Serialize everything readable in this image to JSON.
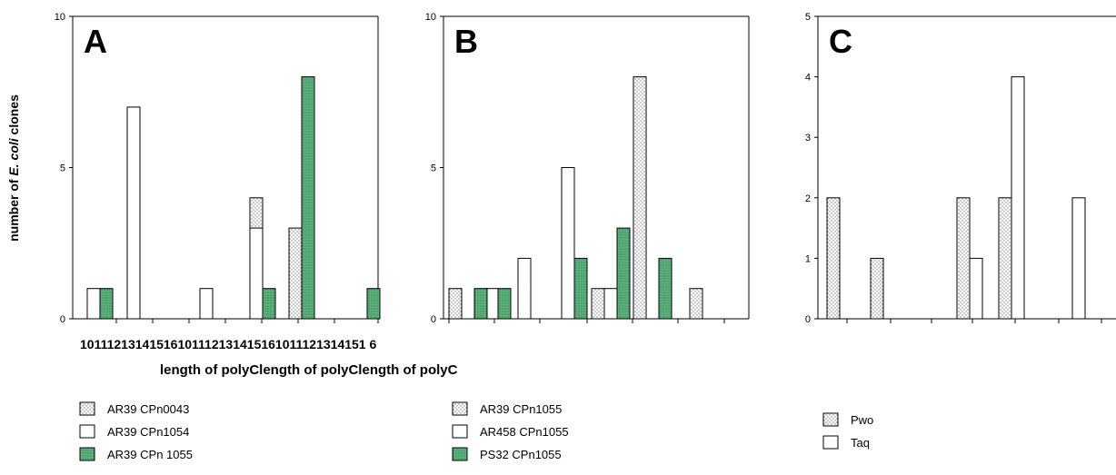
{
  "y_axis_title_prefix": "number of ",
  "y_axis_title_italic": "E. coli",
  "y_axis_title_suffix": " clones",
  "x_tick_strip": "10111213141516101112131415161011121314151 6",
  "x_axis_title": "length of polyClength of polyClength of polyC",
  "colors": {
    "stipple_bg": "#ffffff",
    "stipple_dot": "#7a7a7a",
    "green": "#5ab07a",
    "green_dot": "#2f7a4b",
    "white": "#ffffff",
    "stroke": "#000000"
  },
  "chart_data": [
    {
      "type": "bar",
      "panel": "A",
      "ylim": [
        0,
        10
      ],
      "yticks": [
        0,
        5,
        10
      ],
      "series": [
        {
          "name": "AR39 CPn0043",
          "pattern": "stipple",
          "x": [
            10,
            11,
            12,
            13,
            14,
            15,
            16
          ],
          "values": [
            0,
            0,
            0,
            0,
            4,
            3,
            0
          ]
        },
        {
          "name": "AR39 CPn1054",
          "pattern": "white",
          "x": [
            10,
            11,
            12,
            13,
            14,
            15,
            16
          ],
          "values": [
            1,
            7,
            0,
            1,
            3,
            0,
            0
          ]
        },
        {
          "name": "AR39 CPn 1055",
          "pattern": "green",
          "x": [
            10,
            11,
            12,
            13,
            14,
            15,
            16
          ],
          "values": [
            1,
            0,
            0,
            0,
            1,
            8,
            1
          ]
        }
      ],
      "legend": [
        "AR39 CPn0043",
        "AR39 CPn1054",
        "AR39 CPn 1055"
      ]
    },
    {
      "type": "bar",
      "panel": "B",
      "ylim": [
        0,
        10
      ],
      "yticks": [
        0,
        5,
        10
      ],
      "series": [
        {
          "name": "AR39 CPn1055",
          "pattern": "stipple",
          "x": [
            10,
            11,
            12,
            13,
            14,
            15,
            16
          ],
          "values": [
            1,
            0,
            0,
            0,
            1,
            8,
            1
          ]
        },
        {
          "name": "AR458 CPn1055",
          "pattern": "white",
          "x": [
            10,
            11,
            12,
            13,
            14,
            15,
            16
          ],
          "values": [
            0,
            1,
            2,
            5,
            1,
            0,
            0
          ]
        },
        {
          "name": "PS32 CPn1055",
          "pattern": "green",
          "x": [
            10,
            11,
            12,
            13,
            14,
            15,
            16
          ],
          "values": [
            1,
            1,
            0,
            2,
            3,
            2,
            0
          ]
        }
      ],
      "legend": [
        "AR39 CPn1055",
        "AR458 CPn1055",
        "PS32 CPn1055"
      ]
    },
    {
      "type": "bar",
      "panel": "C",
      "ylim": [
        0,
        5
      ],
      "yticks": [
        0,
        1,
        2,
        3,
        4,
        5
      ],
      "series": [
        {
          "name": "Pwo",
          "pattern": "stipple",
          "x": [
            10,
            11,
            12,
            13,
            14,
            15,
            16
          ],
          "values": [
            2,
            1,
            0,
            2,
            2,
            0,
            0
          ]
        },
        {
          "name": "Taq",
          "pattern": "white",
          "x": [
            10,
            11,
            12,
            13,
            14,
            15,
            16
          ],
          "values": [
            0,
            0,
            0,
            1,
            4,
            2,
            0
          ]
        }
      ],
      "legend": [
        "Pwo",
        "Taq"
      ]
    }
  ]
}
